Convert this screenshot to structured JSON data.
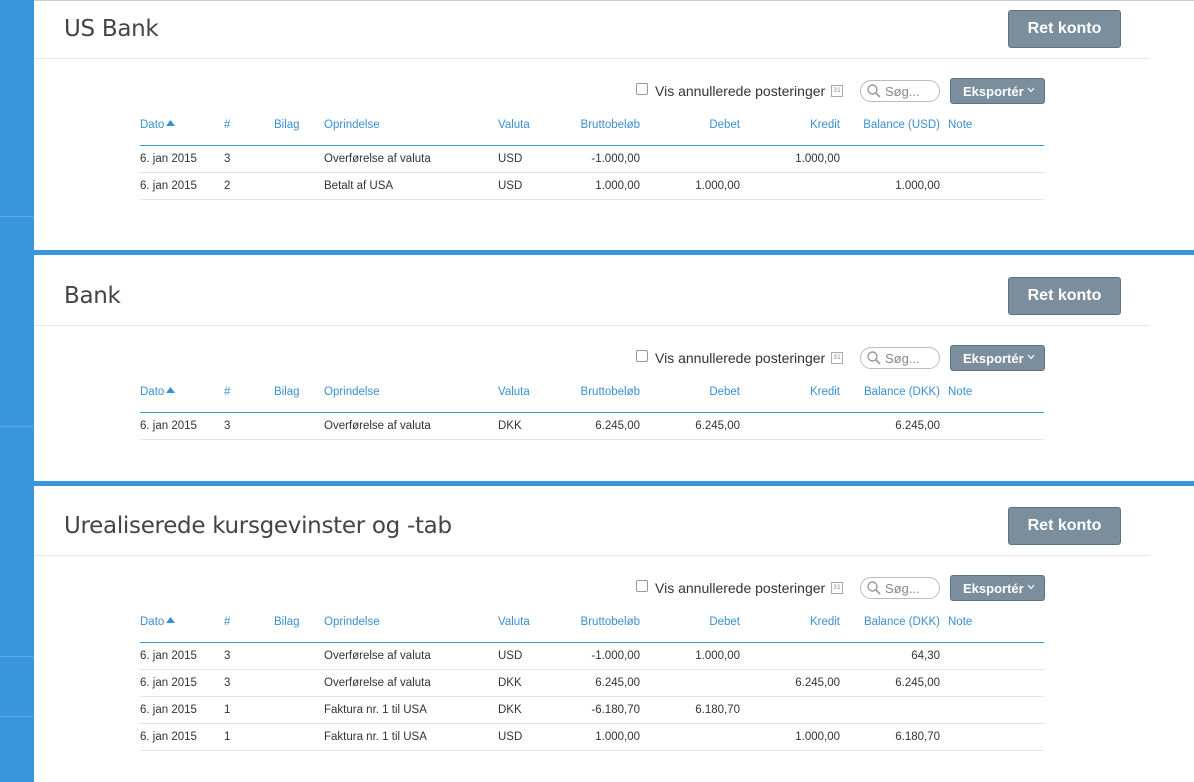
{
  "common": {
    "edit_button_label": "Ret konto",
    "show_voided_label": "Vis annullerede posteringer",
    "search_placeholder": "Søg...",
    "export_label": "Eksportér",
    "calendar_glyph": "31"
  },
  "panels": [
    {
      "title": "US Bank",
      "columns": [
        "Dato",
        "#",
        "Bilag",
        "Oprindelse",
        "Valuta",
        "Bruttobeløb",
        "Debet",
        "Kredit",
        "Balance (USD)",
        "Note"
      ],
      "rows": [
        {
          "dato": "6. jan 2015",
          "num": "3",
          "bilag": "",
          "oprindelse": "Overførelse af valuta",
          "valuta": "USD",
          "brutto": "-1.000,00",
          "debet": "",
          "kredit": "1.000,00",
          "balance": "",
          "note": ""
        },
        {
          "dato": "6. jan 2015",
          "num": "2",
          "bilag": "",
          "oprindelse": "Betalt af USA",
          "valuta": "USD",
          "brutto": "1.000,00",
          "debet": "1.000,00",
          "kredit": "",
          "balance": "1.000,00",
          "note": ""
        }
      ]
    },
    {
      "title": "Bank",
      "columns": [
        "Dato",
        "#",
        "Bilag",
        "Oprindelse",
        "Valuta",
        "Bruttobeløb",
        "Debet",
        "Kredit",
        "Balance (DKK)",
        "Note"
      ],
      "rows": [
        {
          "dato": "6. jan 2015",
          "num": "3",
          "bilag": "",
          "oprindelse": "Overførelse af valuta",
          "valuta": "DKK",
          "brutto": "6.245,00",
          "debet": "6.245,00",
          "kredit": "",
          "balance": "6.245,00",
          "note": ""
        }
      ]
    },
    {
      "title": "Urealiserede kursgevinster og -tab",
      "columns": [
        "Dato",
        "#",
        "Bilag",
        "Oprindelse",
        "Valuta",
        "Bruttobeløb",
        "Debet",
        "Kredit",
        "Balance (DKK)",
        "Note"
      ],
      "rows": [
        {
          "dato": "6. jan 2015",
          "num": "3",
          "bilag": "",
          "oprindelse": "Overførelse af valuta",
          "valuta": "USD",
          "brutto": "-1.000,00",
          "debet": "1.000,00",
          "kredit": "",
          "balance": "64,30",
          "note": ""
        },
        {
          "dato": "6. jan 2015",
          "num": "3",
          "bilag": "",
          "oprindelse": "Overførelse af valuta",
          "valuta": "DKK",
          "brutto": "6.245,00",
          "debet": "",
          "kredit": "6.245,00",
          "balance": "6.245,00",
          "note": ""
        },
        {
          "dato": "6. jan 2015",
          "num": "1",
          "bilag": "",
          "oprindelse": "Faktura nr. 1 til USA",
          "valuta": "DKK",
          "brutto": "-6.180,70",
          "debet": "6.180,70",
          "kredit": "",
          "balance": "",
          "note": ""
        },
        {
          "dato": "6. jan 2015",
          "num": "1",
          "bilag": "",
          "oprindelse": "Faktura nr. 1 til USA",
          "valuta": "USD",
          "brutto": "1.000,00",
          "debet": "",
          "kredit": "1.000,00",
          "balance": "6.180,70",
          "note": ""
        }
      ]
    }
  ]
}
